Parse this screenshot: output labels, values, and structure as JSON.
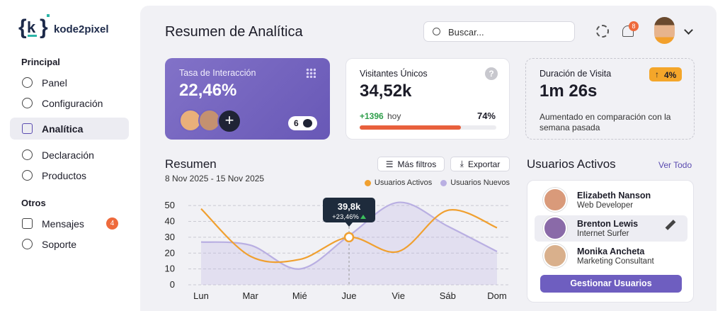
{
  "sidebar": {
    "brand": "kode2pixel",
    "sections": [
      {
        "title": "Principal",
        "items": [
          {
            "label": "Panel"
          },
          {
            "label": "Configuración"
          },
          {
            "label": "Analítica",
            "active": true
          },
          {
            "label": "Declaración"
          },
          {
            "label": "Productos"
          }
        ]
      },
      {
        "title": "Otros",
        "items": [
          {
            "label": "Mensajes",
            "badge": "4"
          },
          {
            "label": "Soporte"
          }
        ]
      }
    ]
  },
  "header": {
    "title": "Resumen de Analítica",
    "search_placeholder": "Buscar...",
    "notifications": "8"
  },
  "cards": [
    {
      "label": "Tasa de Interacción",
      "value": "22,46%",
      "comments": "6"
    },
    {
      "label": "Visitantes Únicos",
      "value": "34,52k",
      "change": "+1396",
      "period": "hoy",
      "progress": {
        "value": 74,
        "label": "74%"
      }
    },
    {
      "label": "Duración de Visita",
      "value": "1m 26s",
      "badge": "4%",
      "note": "Aumentado en comparación con la semana pasada"
    }
  ],
  "chart_data": {
    "type": "line",
    "title": "Resumen",
    "subtitle": "8 Nov 2025 - 15 Nov 2025",
    "buttons": [
      "Más filtros",
      "Exportar"
    ],
    "categories": [
      "Lun",
      "Mar",
      "Mié",
      "Jue",
      "Vie",
      "Sáb",
      "Dom"
    ],
    "series": [
      {
        "name": "Usuarios Activos",
        "color": "#f0a030",
        "values": [
          48,
          18,
          16,
          30,
          21,
          47,
          36
        ]
      },
      {
        "name": "Usuarios Nuevos",
        "color": "#b9afe2",
        "values": [
          27,
          25,
          10,
          31,
          52,
          37,
          21
        ]
      }
    ],
    "ylim": [
      0,
      55
    ],
    "yticks": [
      0,
      10,
      20,
      30,
      40,
      50
    ],
    "grid": true,
    "legend": "top-right",
    "tooltip": {
      "value": "39,8k",
      "change": "+23,46%"
    }
  },
  "active_users": {
    "title": "Usuarios Activos",
    "link": "Ver Todo",
    "users": [
      {
        "name": "Elizabeth Nanson",
        "role": "Web Developer"
      },
      {
        "name": "Brenton Lewis",
        "role": "Internet Surfer",
        "highlighted": true
      },
      {
        "name": "Monika Ancheta",
        "role": "Marketing Consultant"
      }
    ],
    "button": "Gestionar Usuarios"
  }
}
